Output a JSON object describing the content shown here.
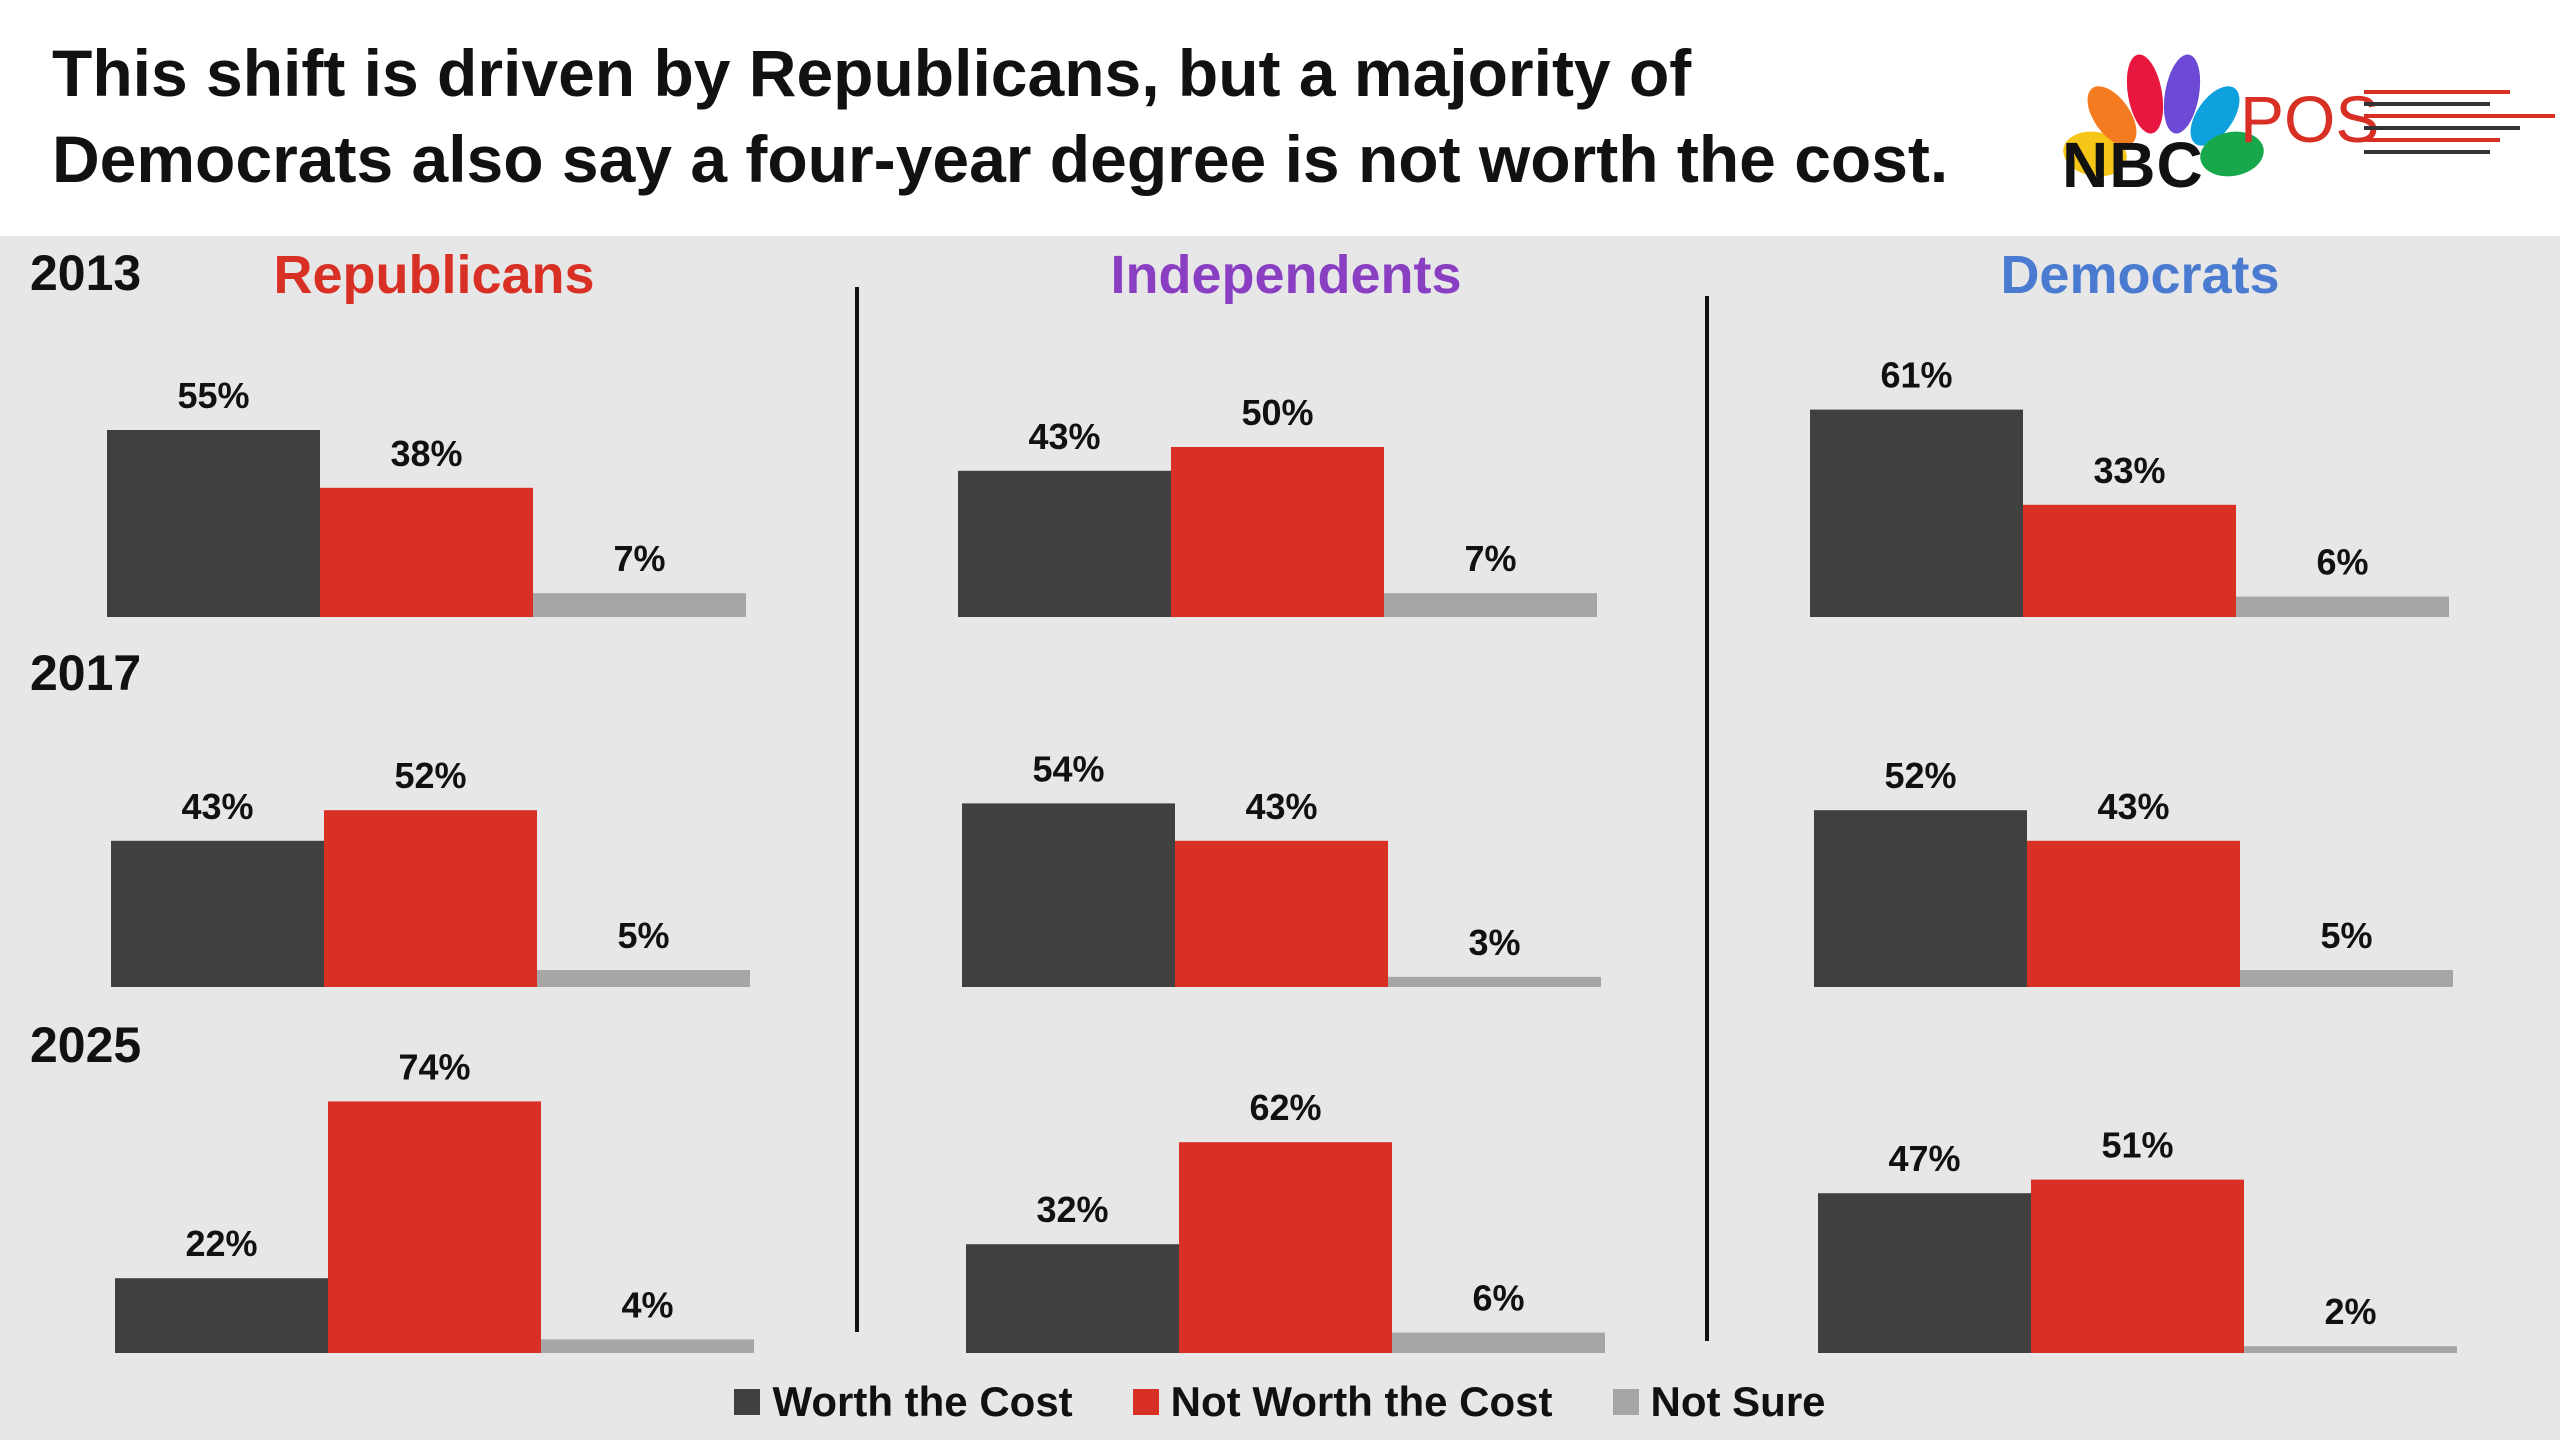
{
  "header": {
    "title_lines": [
      "This shift is driven by Republicans, but a majority of",
      "Democrats also say a four-year degree is not worth the cost."
    ],
    "logo_nbc": "NBC",
    "logo_pos": "POS"
  },
  "colors": {
    "worth": "#404040",
    "not_worth": "#d93025",
    "not_sure": "#a6a6a6",
    "republicans": "#d93025",
    "independents": "#8a3fc3",
    "democrats": "#4a7bd0"
  },
  "chart_data": {
    "type": "bar",
    "title": "This shift is driven by Republicans, but a majority of Democrats also say a four-year degree is not worth the cost.",
    "categories": [
      "Worth the Cost",
      "Not Worth the Cost",
      "Not Sure"
    ],
    "years": [
      "2013",
      "2017",
      "2025"
    ],
    "groups": [
      {
        "name": "Republicans",
        "values": {
          "2013": [
            55,
            38,
            7
          ],
          "2017": [
            43,
            52,
            5
          ],
          "2025": [
            22,
            74,
            4
          ]
        }
      },
      {
        "name": "Independents",
        "values": {
          "2013": [
            43,
            50,
            7
          ],
          "2017": [
            54,
            43,
            3
          ],
          "2025": [
            32,
            62,
            6
          ]
        }
      },
      {
        "name": "Democrats",
        "values": {
          "2013": [
            61,
            33,
            6
          ],
          "2017": [
            52,
            43,
            5
          ],
          "2025": [
            47,
            51,
            2
          ]
        }
      }
    ],
    "value_suffix": "%",
    "legend": [
      "Worth the Cost",
      "Not Worth the Cost",
      "Not Sure"
    ],
    "legend_position": "bottom",
    "grid": false
  }
}
